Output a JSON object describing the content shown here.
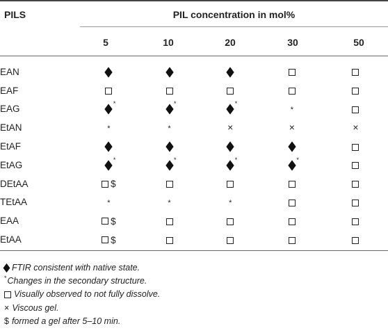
{
  "table": {
    "row_header": "PILS",
    "group_header": "PIL concentration in mol%",
    "columns": [
      "5",
      "10",
      "20",
      "30",
      "50"
    ],
    "rows": [
      {
        "name": "EAN",
        "cells": [
          "diamond",
          "diamond",
          "diamond",
          "square",
          "square"
        ]
      },
      {
        "name": "EAF",
        "cells": [
          "square",
          "square",
          "square",
          "square",
          "square"
        ]
      },
      {
        "name": "EAG",
        "cells": [
          "diamond*",
          "diamond*",
          "diamond*",
          "star",
          "square"
        ]
      },
      {
        "name": "EtAN",
        "cells": [
          "star",
          "star",
          "cross",
          "cross",
          "cross"
        ]
      },
      {
        "name": "EtAF",
        "cells": [
          "diamond",
          "diamond",
          "diamond",
          "diamond",
          "square"
        ]
      },
      {
        "name": "EtAG",
        "cells": [
          "diamond*",
          "diamond*",
          "diamond*",
          "diamond*",
          "square"
        ]
      },
      {
        "name": "DEtAA",
        "cells": [
          "square$",
          "square",
          "square",
          "square",
          "square"
        ]
      },
      {
        "name": "TEtAA",
        "cells": [
          "star",
          "star",
          "star",
          "square",
          "square"
        ]
      },
      {
        "name": "EAA",
        "cells": [
          "square$",
          "square",
          "square",
          "square",
          "square"
        ]
      },
      {
        "name": "EtAA",
        "cells": [
          "square$",
          "square",
          "square",
          "square",
          "square"
        ]
      }
    ],
    "star_symbol": "*",
    "cross_symbol": "×",
    "dollar_symbol": "$"
  },
  "notes": [
    {
      "symbol": "diamond",
      "text": "FTIR consistent with native state."
    },
    {
      "symbol": "sup-star",
      "text": "Changes in the secondary structure."
    },
    {
      "symbol": "square",
      "text": "Visually observed to not fully dissolve."
    },
    {
      "symbol": "cross",
      "text": "Viscous gel."
    },
    {
      "symbol": "dollar",
      "text": "formed a gel after 5–10 min."
    }
  ]
}
